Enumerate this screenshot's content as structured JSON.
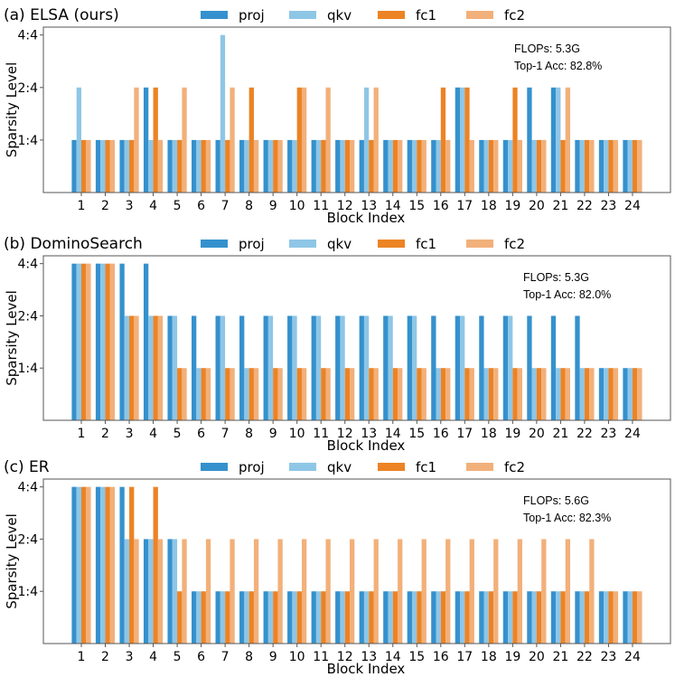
{
  "series_meta": [
    {
      "name": "proj",
      "color": "#3591cd"
    },
    {
      "name": "qkv",
      "color": "#8ec6e6"
    },
    {
      "name": "fc1",
      "color": "#ec8324"
    },
    {
      "name": "fc2",
      "color": "#f2b07a"
    }
  ],
  "chart_data": [
    {
      "type": "bar",
      "title": "(a) ELSA (ours)",
      "xlabel": "Block Index",
      "ylabel": "Sparsity Level",
      "yticks": [
        "1:4",
        "2:4",
        "4:4"
      ],
      "ytick_values": [
        1,
        2,
        3
      ],
      "ylim": [
        0,
        3.15
      ],
      "categories": [
        "1",
        "2",
        "3",
        "4",
        "5",
        "6",
        "7",
        "8",
        "9",
        "10",
        "11",
        "12",
        "13",
        "14",
        "15",
        "16",
        "17",
        "18",
        "19",
        "20",
        "21",
        "22",
        "23",
        "24"
      ],
      "annotation": [
        "FLOPs: 5.3G",
        "Top-1 Acc: 82.8%"
      ],
      "legend_position": "top-center",
      "series": [
        {
          "name": "proj",
          "values": [
            1,
            1,
            1,
            2,
            1,
            1,
            1,
            1,
            1,
            1,
            1,
            1,
            1,
            1,
            1,
            1,
            2,
            1,
            1,
            2,
            2,
            1,
            1,
            1
          ]
        },
        {
          "name": "qkv",
          "values": [
            2,
            1,
            1,
            1,
            1,
            1,
            3,
            1,
            1,
            1,
            1,
            1,
            2,
            1,
            1,
            1,
            2,
            1,
            1,
            1,
            2,
            1,
            1,
            1
          ]
        },
        {
          "name": "fc1",
          "values": [
            1,
            1,
            1,
            2,
            1,
            1,
            1,
            2,
            1,
            2,
            1,
            1,
            1,
            1,
            1,
            2,
            2,
            1,
            2,
            1,
            1,
            1,
            1,
            1
          ]
        },
        {
          "name": "fc2",
          "values": [
            1,
            1,
            2,
            1,
            2,
            1,
            2,
            1,
            1,
            2,
            2,
            1,
            2,
            1,
            1,
            1,
            1,
            1,
            1,
            1,
            2,
            1,
            1,
            1
          ]
        }
      ]
    },
    {
      "type": "bar",
      "title": "(b) DominoSearch",
      "xlabel": "Block Index",
      "ylabel": "Sparsity Level",
      "yticks": [
        "1:4",
        "2:4",
        "4:4"
      ],
      "ytick_values": [
        1,
        2,
        3
      ],
      "ylim": [
        0,
        3.15
      ],
      "categories": [
        "1",
        "2",
        "3",
        "4",
        "5",
        "6",
        "7",
        "8",
        "9",
        "10",
        "11",
        "12",
        "13",
        "14",
        "15",
        "16",
        "17",
        "18",
        "19",
        "20",
        "21",
        "22",
        "23",
        "24"
      ],
      "annotation": [
        "FLOPs: 5.3G",
        "Top-1 Acc: 82.0%"
      ],
      "legend_position": "top-center",
      "series": [
        {
          "name": "proj",
          "values": [
            3,
            3,
            3,
            3,
            2,
            2,
            2,
            2,
            2,
            2,
            2,
            2,
            2,
            2,
            2,
            2,
            2,
            2,
            2,
            2,
            2,
            2,
            1,
            1
          ]
        },
        {
          "name": "qkv",
          "values": [
            3,
            3,
            2,
            2,
            2,
            1,
            2,
            1,
            2,
            2,
            2,
            2,
            2,
            2,
            2,
            1,
            2,
            1,
            2,
            1,
            1,
            1,
            1,
            1
          ]
        },
        {
          "name": "fc1",
          "values": [
            3,
            3,
            2,
            2,
            1,
            1,
            1,
            1,
            1,
            1,
            1,
            1,
            1,
            1,
            1,
            1,
            1,
            1,
            1,
            1,
            1,
            1,
            1,
            1
          ]
        },
        {
          "name": "fc2",
          "values": [
            3,
            3,
            2,
            2,
            1,
            1,
            1,
            1,
            1,
            1,
            1,
            1,
            1,
            1,
            1,
            1,
            1,
            1,
            1,
            1,
            1,
            1,
            1,
            1
          ]
        }
      ]
    },
    {
      "type": "bar",
      "title": "(c) ER",
      "xlabel": "Block Index",
      "ylabel": "Sparsity Level",
      "yticks": [
        "1:4",
        "2:4",
        "4:4"
      ],
      "ytick_values": [
        1,
        2,
        3
      ],
      "ylim": [
        0,
        3.15
      ],
      "categories": [
        "1",
        "2",
        "3",
        "4",
        "5",
        "6",
        "7",
        "8",
        "9",
        "10",
        "11",
        "12",
        "13",
        "14",
        "15",
        "16",
        "17",
        "18",
        "19",
        "20",
        "21",
        "22",
        "23",
        "24"
      ],
      "annotation": [
        "FLOPs: 5.6G",
        "Top-1 Acc: 82.3%"
      ],
      "legend_position": "top-center",
      "series": [
        {
          "name": "proj",
          "values": [
            3,
            3,
            3,
            2,
            2,
            1,
            1,
            1,
            1,
            1,
            1,
            1,
            1,
            1,
            1,
            1,
            1,
            1,
            1,
            1,
            1,
            1,
            1,
            1
          ]
        },
        {
          "name": "qkv",
          "values": [
            3,
            3,
            2,
            2,
            2,
            1,
            1,
            1,
            1,
            1,
            1,
            1,
            1,
            1,
            1,
            1,
            1,
            1,
            1,
            1,
            1,
            1,
            1,
            1
          ]
        },
        {
          "name": "fc1",
          "values": [
            3,
            3,
            3,
            3,
            1,
            1,
            1,
            1,
            1,
            1,
            1,
            1,
            1,
            1,
            1,
            1,
            1,
            1,
            1,
            1,
            1,
            1,
            1,
            1
          ]
        },
        {
          "name": "fc2",
          "values": [
            3,
            3,
            2,
            2,
            2,
            2,
            2,
            2,
            2,
            2,
            2,
            2,
            2,
            2,
            2,
            2,
            2,
            2,
            2,
            2,
            2,
            2,
            1,
            1
          ]
        }
      ]
    }
  ]
}
